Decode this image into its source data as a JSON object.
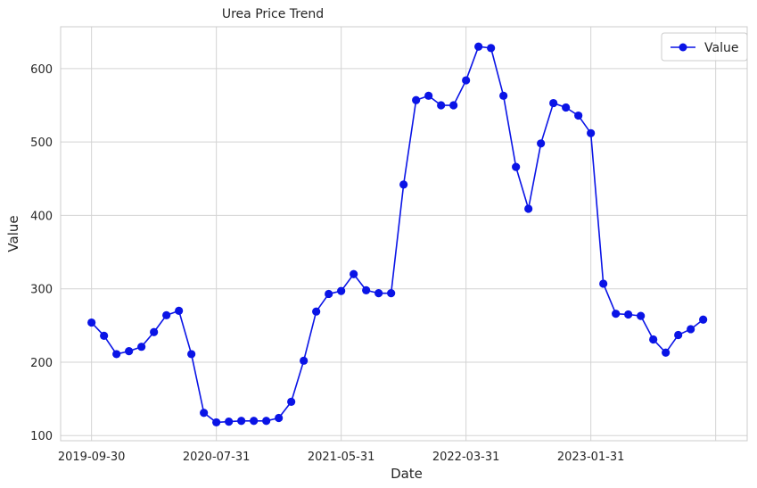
{
  "chart_data": {
    "type": "line",
    "title": "Urea Price Trend",
    "xlabel": "Date",
    "ylabel": "Value",
    "x_tick_labels": [
      "2019-09-30",
      "2020-07-31",
      "2021-05-31",
      "2022-03-31",
      "2023-01-31"
    ],
    "y_ticks": [
      100,
      200,
      300,
      400,
      500,
      600
    ],
    "ylim": [
      93,
      657
    ],
    "grid": true,
    "legend_position": "top-right",
    "series": [
      {
        "name": "Value",
        "color": "#0a14e6",
        "marker": "circle",
        "x": [
          "2019-09-30",
          "2019-10-31",
          "2019-11-30",
          "2019-12-31",
          "2020-01-31",
          "2020-02-29",
          "2020-03-31",
          "2020-04-30",
          "2020-05-31",
          "2020-06-30",
          "2020-07-31",
          "2020-08-31",
          "2020-09-30",
          "2020-10-31",
          "2020-11-30",
          "2020-12-31",
          "2021-01-31",
          "2021-02-28",
          "2021-03-31",
          "2021-04-30",
          "2021-05-31",
          "2021-06-30",
          "2021-07-31",
          "2021-08-31",
          "2021-09-30",
          "2021-10-31",
          "2021-11-30",
          "2021-12-31",
          "2022-01-31",
          "2022-02-28",
          "2022-03-31",
          "2022-04-30",
          "2022-05-31",
          "2022-06-30",
          "2022-07-31",
          "2022-08-31",
          "2022-09-30",
          "2022-10-31",
          "2022-11-30",
          "2022-12-31",
          "2023-01-31",
          "2023-02-28",
          "2023-03-31",
          "2023-04-30",
          "2023-05-31",
          "2023-06-30",
          "2023-07-31",
          "2023-08-31",
          "2023-09-30",
          "2023-10-31"
        ],
        "values": [
          254,
          236,
          211,
          215,
          221,
          241,
          264,
          270,
          211,
          131,
          118,
          119,
          120,
          120,
          120,
          124,
          146,
          202,
          269,
          293,
          297,
          320,
          298,
          294,
          294,
          442,
          557,
          563,
          550,
          550,
          584,
          630,
          628,
          563,
          466,
          409,
          498,
          553,
          547,
          536,
          512,
          307,
          266,
          265,
          263,
          231,
          213,
          237,
          245,
          258
        ]
      }
    ]
  }
}
